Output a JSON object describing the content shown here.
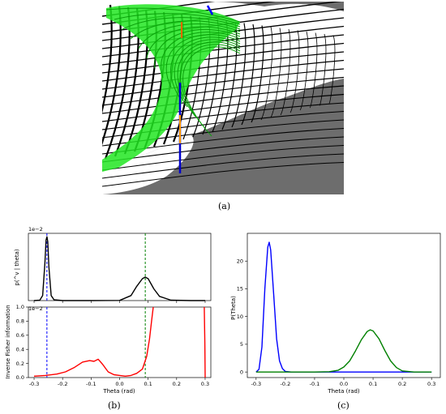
{
  "captions": {
    "a": "(a)",
    "b": "(b)",
    "c": "(c)"
  },
  "colors": {
    "mesh_dark": "#000000",
    "mesh_light": "#ffffff",
    "green_surface": "#22e622",
    "background": "#6d6d6d",
    "blue": "#0000ff",
    "green": "#008000",
    "red": "#ff0000"
  },
  "panel_b_top": {
    "ylabel": "p(^v | theta)",
    "scale_note": "1e−2",
    "xlim": [
      -0.32,
      0.32
    ],
    "ylim": [
      0,
      8
    ],
    "xticks": [
      "-0.3",
      "-0.2",
      "-0.1",
      "0.0",
      "0.1",
      "0.2",
      "0.3"
    ],
    "vlines": [
      {
        "x": -0.255,
        "color": "#0000ff"
      },
      {
        "x": 0.09,
        "color": "#008000"
      }
    ]
  },
  "panel_b_bottom": {
    "ylabel": "Inverse Fisher information",
    "scale_note": "1e−2",
    "xlabel": "Theta (rad)",
    "xlim": [
      -0.32,
      0.32
    ],
    "ylim": [
      0,
      1.0
    ],
    "xticks": [
      "-0.3",
      "-0.2",
      "-0.1",
      "0.0",
      "0.1",
      "0.2",
      "0.3"
    ],
    "yticks": [
      "0.0",
      "0.2",
      "0.4",
      "0.6",
      "0.8",
      "1.0"
    ],
    "vlines": [
      {
        "x": -0.255,
        "color": "#0000ff"
      },
      {
        "x": 0.09,
        "color": "#008000"
      }
    ]
  },
  "panel_c": {
    "ylabel": "P(Theta)",
    "xlabel": "Theta (rad)",
    "xticks": [
      "-0.3",
      "-0.2",
      "-0.1",
      "0.0",
      "0.1",
      "0.2",
      "0.3"
    ],
    "yticks": [
      "0",
      "5",
      "10",
      "15",
      "20"
    ]
  },
  "chart_data": [
    {
      "type": "line",
      "xlabel": "",
      "ylabel": "p(^v | theta)",
      "xlim": [
        -0.32,
        0.32
      ],
      "ylim": [
        0,
        8
      ],
      "scale": "1e-2",
      "series": [
        {
          "color": "#000000",
          "x": [
            -0.3,
            -0.28,
            -0.27,
            -0.262,
            -0.258,
            -0.255,
            -0.252,
            -0.248,
            -0.24,
            -0.23,
            -0.2,
            -0.1,
            0.0,
            0.04,
            0.06,
            0.08,
            0.09,
            0.1,
            0.12,
            0.14,
            0.18,
            0.25,
            0.3
          ],
          "y": [
            0.0,
            0.05,
            0.6,
            4.5,
            7.2,
            7.6,
            7.0,
            4.0,
            0.6,
            0.1,
            0.0,
            0.0,
            0.02,
            0.6,
            1.7,
            2.6,
            2.8,
            2.6,
            1.4,
            0.5,
            0.05,
            0.0,
            0.0
          ]
        }
      ]
    },
    {
      "type": "line",
      "xlabel": "Theta (rad)",
      "ylabel": "Inverse Fisher information",
      "xlim": [
        -0.32,
        0.32
      ],
      "ylim": [
        0,
        1.0
      ],
      "scale": "1e-2",
      "series": [
        {
          "color": "#ff0000",
          "x": [
            -0.3,
            -0.26,
            -0.22,
            -0.19,
            -0.16,
            -0.13,
            -0.105,
            -0.09,
            -0.075,
            -0.06,
            -0.04,
            -0.02,
            0.0,
            0.02,
            0.04,
            0.06,
            0.08,
            0.095,
            0.105,
            0.112,
            0.118
          ],
          "y": [
            0.02,
            0.03,
            0.05,
            0.08,
            0.14,
            0.22,
            0.24,
            0.23,
            0.26,
            0.19,
            0.08,
            0.04,
            0.03,
            0.02,
            0.03,
            0.06,
            0.12,
            0.3,
            0.55,
            0.8,
            1.0
          ]
        },
        {
          "color": "#ff0000",
          "x": [
            0.297,
            0.299,
            0.3
          ],
          "y": [
            1.0,
            0.5,
            0.0
          ]
        }
      ]
    },
    {
      "type": "line",
      "xlabel": "Theta (rad)",
      "ylabel": "P(Theta)",
      "xlim": [
        -0.33,
        0.33
      ],
      "ylim": [
        -1,
        25
      ],
      "series": [
        {
          "color": "#0000ff",
          "x": [
            -0.3,
            -0.29,
            -0.28,
            -0.27,
            -0.26,
            -0.255,
            -0.25,
            -0.24,
            -0.23,
            -0.22,
            -0.21,
            -0.2,
            -0.18,
            0.0,
            0.3
          ],
          "y": [
            0.0,
            0.5,
            4.5,
            15.0,
            22.5,
            23.4,
            22.0,
            14.0,
            6.0,
            2.0,
            0.6,
            0.1,
            0.0,
            0.0,
            0.0
          ]
        },
        {
          "color": "#008000",
          "x": [
            -0.3,
            -0.1,
            -0.05,
            -0.02,
            0.0,
            0.02,
            0.04,
            0.06,
            0.08,
            0.09,
            0.1,
            0.12,
            0.14,
            0.16,
            0.18,
            0.2,
            0.24,
            0.3
          ],
          "y": [
            0.0,
            0.0,
            0.05,
            0.3,
            0.9,
            2.0,
            3.8,
            5.8,
            7.3,
            7.6,
            7.4,
            6.0,
            3.9,
            2.0,
            0.8,
            0.2,
            0.0,
            0.0
          ]
        }
      ]
    }
  ]
}
